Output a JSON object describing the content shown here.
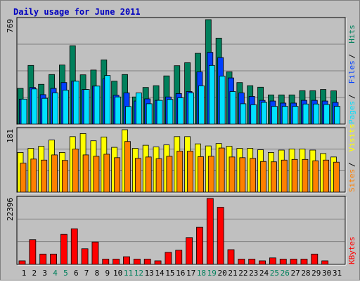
{
  "title": "Daily usage for June 2011",
  "colors": {
    "background": "#c0c0c0",
    "title": "#0000c0",
    "hits": "#00805c",
    "files": "#0040ff",
    "pages": "#00e0ff",
    "visits": "#ffff00",
    "sites": "#ff8000",
    "kbytes": "#ff0000",
    "weekend_label": "#00805c",
    "normal_label": "#000000"
  },
  "chart_data": [
    {
      "type": "bar",
      "name": "hits-files-pages",
      "max_label": "769",
      "legend": [
        "Hits",
        "Files",
        "Pages"
      ],
      "categories": [
        "1",
        "2",
        "3",
        "4",
        "5",
        "6",
        "7",
        "8",
        "9",
        "10",
        "11",
        "12",
        "13",
        "14",
        "15",
        "16",
        "17",
        "18",
        "19",
        "20",
        "21",
        "22",
        "23",
        "24",
        "25",
        "26",
        "27",
        "28",
        "29",
        "30",
        "31"
      ],
      "weekend_days": [
        4,
        5,
        11,
        12,
        18,
        19,
        25,
        26
      ],
      "ylim": [
        0,
        769
      ],
      "series": [
        {
          "name": "Hits",
          "values": [
            263,
            432,
            293,
            365,
            435,
            577,
            363,
            398,
            473,
            316,
            365,
            200,
            270,
            283,
            355,
            430,
            452,
            521,
            769,
            633,
            385,
            306,
            283,
            272,
            215,
            215,
            215,
            246,
            246,
            255,
            245
          ]
        },
        {
          "name": "Files",
          "values": [
            184,
            270,
            217,
            263,
            306,
            316,
            255,
            280,
            333,
            212,
            230,
            170,
            186,
            175,
            200,
            225,
            240,
            385,
            528,
            490,
            340,
            230,
            204,
            175,
            170,
            155,
            155,
            175,
            175,
            170,
            160
          ]
        },
        {
          "name": "Pages",
          "values": [
            184,
            259,
            190,
            230,
            250,
            316,
            255,
            280,
            358,
            200,
            130,
            230,
            150,
            175,
            182,
            194,
            230,
            282,
            432,
            353,
            240,
            150,
            143,
            160,
            131,
            131,
            131,
            148,
            148,
            145,
            131
          ]
        }
      ]
    },
    {
      "type": "bar",
      "name": "visits-sites",
      "max_label": "181",
      "legend": [
        "Visits",
        "Sites"
      ],
      "categories": [
        "1",
        "2",
        "3",
        "4",
        "5",
        "6",
        "7",
        "8",
        "9",
        "10",
        "11",
        "12",
        "13",
        "14",
        "15",
        "16",
        "17",
        "18",
        "19",
        "20",
        "21",
        "22",
        "23",
        "24",
        "25",
        "26",
        "27",
        "28",
        "29",
        "30",
        "31"
      ],
      "weekend_days": [
        4,
        5,
        11,
        12,
        18,
        19,
        25,
        26
      ],
      "ylim": [
        0,
        181
      ],
      "series": [
        {
          "name": "Visits",
          "values": [
            115,
            127,
            133,
            151,
            115,
            161,
            170,
            149,
            160,
            130,
            181,
            127,
            136,
            131,
            137,
            161,
            161,
            140,
            134,
            141,
            133,
            127,
            127,
            123,
            115,
            122,
            125,
            125,
            122,
            112,
            102
          ]
        },
        {
          "name": "Sites",
          "values": [
            84,
            96,
            93,
            108,
            92,
            125,
            108,
            104,
            110,
            100,
            147,
            98,
            102,
            97,
            104,
            119,
            119,
            103,
            104,
            128,
            102,
            100,
            98,
            89,
            88,
            93,
            95,
            95,
            91,
            93,
            87
          ]
        }
      ]
    },
    {
      "type": "bar",
      "name": "kbytes",
      "max_label": "22396",
      "legend": [
        "KBytes"
      ],
      "categories": [
        "1",
        "2",
        "3",
        "4",
        "5",
        "6",
        "7",
        "8",
        "9",
        "10",
        "11",
        "12",
        "13",
        "14",
        "15",
        "16",
        "17",
        "18",
        "19",
        "20",
        "21",
        "22",
        "23",
        "24",
        "25",
        "26",
        "27",
        "28",
        "29",
        "30",
        "31"
      ],
      "weekend_days": [
        4,
        5,
        11,
        12,
        18,
        19,
        25,
        26
      ],
      "ylim": [
        0,
        22396
      ],
      "series": [
        {
          "name": "KBytes",
          "values": [
            1200,
            8400,
            3500,
            3500,
            10200,
            12100,
            5300,
            7600,
            1800,
            1800,
            2600,
            1800,
            1800,
            1200,
            4100,
            4800,
            9100,
            12600,
            22396,
            19400,
            5000,
            1800,
            1800,
            1200,
            2200,
            1800,
            1800,
            1800,
            3500,
            1200,
            0
          ]
        }
      ]
    }
  ]
}
